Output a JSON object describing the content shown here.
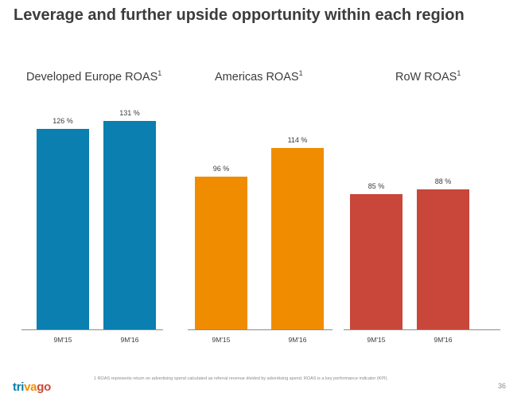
{
  "slide": {
    "title": "Leverage and further upside opportunity within each region",
    "footnote": "1 ROAS represents return on advertising spend calculated as referral revenue divided by advertising spend. ROAS is a key performance indicator (KPI).",
    "page_number": "36",
    "logo": {
      "parts": [
        "tri",
        "va",
        "go"
      ],
      "colors": [
        "#007fad",
        "#f48f00",
        "#c94a38"
      ]
    }
  },
  "chart_data": [
    {
      "type": "bar",
      "title": "Developed Europe ROAS",
      "title_sup": "1",
      "categories": [
        "9M'15",
        "9M'16"
      ],
      "values": [
        126,
        131
      ],
      "value_labels": [
        "126 %",
        "131 %"
      ],
      "color": "#0a7fb0",
      "ylim": [
        0,
        140
      ]
    },
    {
      "type": "bar",
      "title": "Americas ROAS",
      "title_sup": "1",
      "categories": [
        "9M'15",
        "9M'16"
      ],
      "values": [
        96,
        114
      ],
      "value_labels": [
        "96 %",
        "114 %"
      ],
      "color": "#f08c00",
      "ylim": [
        0,
        140
      ]
    },
    {
      "type": "bar",
      "title": "RoW ROAS",
      "title_sup": "1",
      "categories": [
        "9M'15",
        "9M'16"
      ],
      "values": [
        85,
        88
      ],
      "value_labels": [
        "85 %",
        "88 %"
      ],
      "color": "#c8463a",
      "ylim": [
        0,
        140
      ]
    }
  ]
}
